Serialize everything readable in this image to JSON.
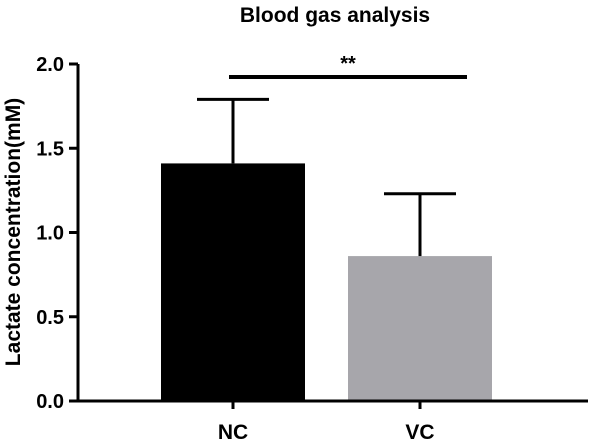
{
  "chart_data": {
    "type": "bar",
    "title": "Blood gas analysis",
    "xlabel": "",
    "ylabel": "Lactate concentration(mM)",
    "categories": [
      "NC",
      "VC"
    ],
    "values": [
      1.41,
      0.86
    ],
    "error_upper": [
      0.38,
      0.37
    ],
    "bar_colors": [
      "#000000",
      "#a7a6ab"
    ],
    "ylim": [
      0.0,
      2.0
    ],
    "yticks": [
      0.0,
      0.5,
      1.0,
      1.5,
      2.0
    ],
    "ytick_labels": [
      "0.0",
      "0.5",
      "1.0",
      "1.5",
      "2.0"
    ],
    "significance": {
      "label": "**",
      "from": "NC",
      "to": "VC"
    },
    "grid": false,
    "legend": "none"
  }
}
